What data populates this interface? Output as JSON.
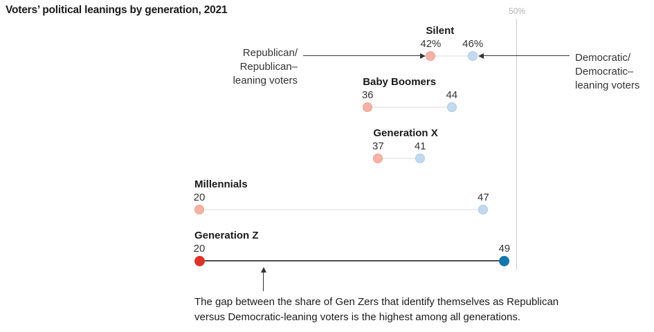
{
  "colors": {
    "republican_light": "#f4b3a5",
    "republican_light_border": "#efa18f",
    "democratic_light": "#c3d9ee",
    "democratic_light_border": "#abcae6",
    "republican_solid": "#dc3327",
    "democratic_solid": "#1476ad",
    "connector_light": "#ededed",
    "connector_dark": "#4d4d4d",
    "gridline": "#cccccc",
    "gridline_label_color": "#b0b0b0"
  },
  "chart_data": {
    "type": "dumbbell",
    "title": "Voters’ political leanings by generation, 2021",
    "categories": [
      "Silent",
      "Baby Boomers",
      "Generation X",
      "Millennials",
      "Generation Z"
    ],
    "series": [
      {
        "name": "Republican/Republican-leaning voters",
        "values": [
          42,
          36,
          37,
          20,
          20
        ]
      },
      {
        "name": "Democratic/Democratic-leaning voters",
        "values": [
          46,
          44,
          41,
          47,
          49
        ]
      }
    ],
    "value_labels": [
      [
        "42%",
        "46%"
      ],
      [
        "36",
        "44"
      ],
      [
        "37",
        "41"
      ],
      [
        "20",
        "47"
      ],
      [
        "20",
        "49"
      ]
    ],
    "emphasized_category": "Generation Z",
    "axis": {
      "unit": "%",
      "reference_line_value": 50,
      "reference_line_label": "50%",
      "value_anchor_min": 20
    },
    "legend": {
      "republican_label": "Republican/\nRepublican–\nleaning voters",
      "democratic_label": "Democratic/\nDemocratic–\nleaning voters"
    },
    "caption": "The gap between the share of Gen Zers that identify themselves as Republican\nversus Democratic-leaning voters is the highest among all generations."
  }
}
